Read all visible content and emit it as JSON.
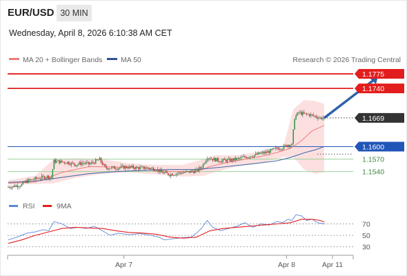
{
  "header": {
    "symbol": "EUR/USD",
    "timeframe": "30 MIN",
    "datetime": "Wednesday, April 8, 2026 6:10:38 AM CET"
  },
  "legend": {
    "ma20_label": "MA 20 + Bollinger Bands",
    "ma50_label": "MA 50",
    "credit": "Research © 2026 Trading Central",
    "rsi_label": "RSI",
    "ma9_label": "9MA"
  },
  "colors": {
    "resistance": "#e31d1d",
    "support": "#2155b8",
    "pivot": "#9ad19a",
    "last": "#333333",
    "bull": "#2e9d4e",
    "bear": "#d23030",
    "ma20": "#f07a7a",
    "ma50": "#4a6aa8",
    "band": "#fbdada",
    "rsi": "#5b86d6",
    "rsi_ma": "#e31d1d",
    "arrow": "#2f62a8"
  },
  "chart_data": [
    {
      "type": "candlestick",
      "title": "EUR/USD 30 MIN",
      "ylim": [
        1.1488,
        1.1795
      ],
      "x_ticks": [
        "Apr 7",
        "Apr 8",
        "Apr 11"
      ],
      "levels": [
        {
          "label": "1.1775",
          "value": 1.1775,
          "kind": "resistance"
        },
        {
          "label": "1.1740",
          "value": 1.174,
          "kind": "resistance"
        },
        {
          "label": "1.1669",
          "value": 1.1669,
          "kind": "last"
        },
        {
          "label": "1.1600",
          "value": 1.16,
          "kind": "support"
        },
        {
          "label": "1.1570",
          "value": 1.157,
          "kind": "pivot"
        },
        {
          "label": "1.1540",
          "value": 1.154,
          "kind": "pivot"
        }
      ],
      "close_path": [
        [
          0,
          1.1503
        ],
        [
          6,
          1.1506
        ],
        [
          10,
          1.1508
        ],
        [
          13,
          1.1516
        ],
        [
          18,
          1.1521
        ],
        [
          24,
          1.1525
        ],
        [
          29,
          1.1528
        ],
        [
          32,
          1.1526
        ],
        [
          34,
          1.1565
        ],
        [
          44,
          1.1562
        ],
        [
          50,
          1.1557
        ],
        [
          56,
          1.1561
        ],
        [
          60,
          1.1558
        ],
        [
          64,
          1.1563
        ],
        [
          68,
          1.1569
        ],
        [
          72,
          1.1549
        ],
        [
          80,
          1.1549
        ],
        [
          88,
          1.1551
        ],
        [
          96,
          1.1549
        ],
        [
          104,
          1.1549
        ],
        [
          110,
          1.1546
        ],
        [
          114,
          1.1538
        ],
        [
          120,
          1.1533
        ],
        [
          128,
          1.1537
        ],
        [
          134,
          1.1539
        ],
        [
          140,
          1.1542
        ],
        [
          144,
          1.1552
        ],
        [
          148,
          1.1575
        ],
        [
          152,
          1.157
        ],
        [
          158,
          1.1566
        ],
        [
          164,
          1.1567
        ],
        [
          170,
          1.157
        ],
        [
          176,
          1.1575
        ],
        [
          180,
          1.1578
        ],
        [
          184,
          1.158
        ],
        [
          188,
          1.1584
        ],
        [
          192,
          1.1586
        ],
        [
          196,
          1.1591
        ],
        [
          200,
          1.1596
        ],
        [
          204,
          1.1598
        ],
        [
          208,
          1.1605
        ],
        [
          211,
          1.1604
        ],
        [
          213,
          1.167
        ],
        [
          216,
          1.1682
        ],
        [
          220,
          1.1678
        ],
        [
          224,
          1.1677
        ],
        [
          228,
          1.1673
        ],
        [
          232,
          1.1669
        ],
        [
          235,
          1.1669
        ]
      ],
      "ma20": [
        [
          0,
          1.1512
        ],
        [
          20,
          1.1515
        ],
        [
          40,
          1.1538
        ],
        [
          60,
          1.1552
        ],
        [
          80,
          1.1551
        ],
        [
          100,
          1.1549
        ],
        [
          120,
          1.154
        ],
        [
          140,
          1.154
        ],
        [
          150,
          1.1552
        ],
        [
          160,
          1.156
        ],
        [
          170,
          1.1566
        ],
        [
          180,
          1.1572
        ],
        [
          190,
          1.1578
        ],
        [
          200,
          1.1586
        ],
        [
          210,
          1.1596
        ],
        [
          218,
          1.1614
        ],
        [
          226,
          1.1638
        ],
        [
          235,
          1.1651
        ]
      ],
      "ma50": [
        [
          0,
          1.1514
        ],
        [
          20,
          1.1517
        ],
        [
          40,
          1.1526
        ],
        [
          60,
          1.1535
        ],
        [
          80,
          1.154
        ],
        [
          100,
          1.1543
        ],
        [
          120,
          1.1545
        ],
        [
          140,
          1.1545
        ],
        [
          160,
          1.1551
        ],
        [
          180,
          1.1558
        ],
        [
          200,
          1.1566
        ],
        [
          210,
          1.1574
        ],
        [
          220,
          1.1585
        ],
        [
          228,
          1.1592
        ],
        [
          235,
          1.16
        ]
      ],
      "bollinger": {
        "upper": [
          [
            0,
            1.1519
          ],
          [
            20,
            1.153
          ],
          [
            34,
            1.157
          ],
          [
            50,
            1.1572
          ],
          [
            70,
            1.157
          ],
          [
            90,
            1.156
          ],
          [
            110,
            1.1556
          ],
          [
            130,
            1.1556
          ],
          [
            145,
            1.157
          ],
          [
            155,
            1.158
          ],
          [
            170,
            1.1579
          ],
          [
            190,
            1.159
          ],
          [
            205,
            1.1605
          ],
          [
            212,
            1.169
          ],
          [
            220,
            1.1712
          ],
          [
            228,
            1.171
          ],
          [
            235,
            1.1703
          ]
        ],
        "lower": [
          [
            0,
            1.1508
          ],
          [
            20,
            1.151
          ],
          [
            34,
            1.1512
          ],
          [
            50,
            1.1525
          ],
          [
            70,
            1.1535
          ],
          [
            90,
            1.1538
          ],
          [
            110,
            1.1533
          ],
          [
            130,
            1.1528
          ],
          [
            145,
            1.153
          ],
          [
            155,
            1.154
          ],
          [
            170,
            1.1553
          ],
          [
            190,
            1.1562
          ],
          [
            205,
            1.1575
          ],
          [
            212,
            1.1575
          ],
          [
            220,
            1.1545
          ],
          [
            228,
            1.1535
          ],
          [
            235,
            1.1538
          ]
        ]
      },
      "forecast_arrow": {
        "from": [
          235,
          1.1669
        ],
        "to": [
          255,
          1.1775
        ]
      }
    },
    {
      "type": "line",
      "title": "RSI",
      "ylim": [
        20,
        85
      ],
      "y_ticks": [
        70,
        50,
        30
      ],
      "series": [
        {
          "name": "RSI",
          "values": [
            [
              0,
              42
            ],
            [
              8,
              48
            ],
            [
              14,
              54
            ],
            [
              20,
              56
            ],
            [
              26,
              60
            ],
            [
              30,
              58
            ],
            [
              34,
              74
            ],
            [
              40,
              70
            ],
            [
              46,
              62
            ],
            [
              52,
              64
            ],
            [
              58,
              62
            ],
            [
              64,
              66
            ],
            [
              70,
              58
            ],
            [
              76,
              50
            ],
            [
              82,
              54
            ],
            [
              90,
              51
            ],
            [
              98,
              53
            ],
            [
              106,
              50
            ],
            [
              112,
              47
            ],
            [
              116,
              42
            ],
            [
              122,
              44
            ],
            [
              130,
              46
            ],
            [
              136,
              47
            ],
            [
              140,
              54
            ],
            [
              144,
              63
            ],
            [
              148,
              76
            ],
            [
              152,
              64
            ],
            [
              158,
              58
            ],
            [
              164,
              62
            ],
            [
              170,
              66
            ],
            [
              176,
              72
            ],
            [
              182,
              64
            ],
            [
              188,
              70
            ],
            [
              194,
              68
            ],
            [
              200,
              74
            ],
            [
              204,
              72
            ],
            [
              208,
              78
            ],
            [
              211,
              76
            ],
            [
              214,
              86
            ],
            [
              218,
              84
            ],
            [
              222,
              76
            ],
            [
              226,
              78
            ],
            [
              230,
              72
            ],
            [
              235,
              70
            ]
          ]
        },
        {
          "name": "9MA",
          "values": [
            [
              0,
              36
            ],
            [
              10,
              42
            ],
            [
              20,
              50
            ],
            [
              30,
              56
            ],
            [
              40,
              62
            ],
            [
              50,
              64
            ],
            [
              60,
              63
            ],
            [
              70,
              62
            ],
            [
              80,
              58
            ],
            [
              90,
              55
            ],
            [
              100,
              54
            ],
            [
              110,
              52
            ],
            [
              120,
              47
            ],
            [
              130,
              45
            ],
            [
              140,
              47
            ],
            [
              150,
              58
            ],
            [
              160,
              62
            ],
            [
              170,
              64
            ],
            [
              180,
              66
            ],
            [
              190,
              68
            ],
            [
              200,
              70
            ],
            [
              210,
              72
            ],
            [
              218,
              78
            ],
            [
              226,
              78
            ],
            [
              232,
              76
            ],
            [
              235,
              73
            ]
          ]
        }
      ]
    }
  ]
}
